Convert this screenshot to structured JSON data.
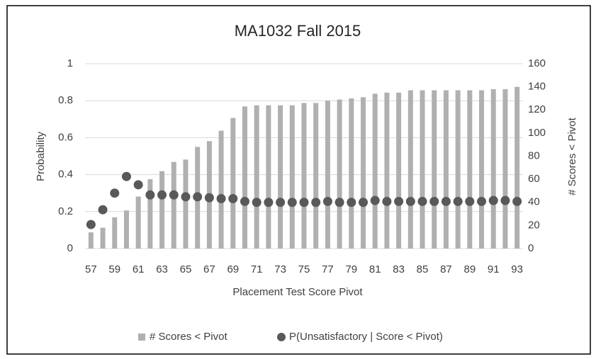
{
  "chart_data": {
    "type": "bar-scatter",
    "title": "MA1032 Fall 2015",
    "xlabel": "Placement Test Score Pivot",
    "ylabel": "Probability",
    "y2label": "# Scores < Pivot",
    "categories": [
      "57",
      null,
      "59",
      null,
      "61",
      null,
      "63",
      null,
      "65",
      null,
      "67",
      null,
      "69",
      null,
      "71",
      null,
      "73",
      null,
      "75",
      null,
      "77",
      null,
      "79",
      null,
      "81",
      null,
      "83",
      null,
      "85",
      null,
      "87",
      null,
      "89",
      null,
      "91",
      null,
      "93"
    ],
    "ylim": [
      0,
      1
    ],
    "yticks": [
      0,
      0.2,
      0.4,
      0.6,
      0.8,
      1
    ],
    "y2lim": [
      0,
      160
    ],
    "y2ticks": [
      0,
      20,
      40,
      60,
      80,
      100,
      120,
      140,
      160
    ],
    "grid": true,
    "legend": "bottom",
    "series": [
      {
        "name": "# Scores < Pivot",
        "type": "bar",
        "axis": "y2",
        "color": "#b0b0b0",
        "values": [
          14,
          18,
          27,
          33,
          45,
          60,
          67,
          75,
          77,
          88,
          93,
          102,
          113,
          123,
          124,
          124,
          124,
          124,
          126,
          126,
          128,
          129,
          130,
          131,
          134,
          135,
          135,
          137,
          137,
          137,
          137,
          137,
          137,
          137,
          138,
          138,
          140
        ]
      },
      {
        "name": "P(Unsatisfactory | Score < Pivot)",
        "type": "scatter",
        "color": "#595959",
        "values": [
          0.13,
          0.21,
          0.3,
          0.39,
          0.345,
          0.29,
          0.29,
          0.29,
          0.28,
          0.28,
          0.275,
          0.27,
          0.27,
          0.255,
          0.25,
          0.25,
          0.25,
          0.25,
          0.25,
          0.25,
          0.255,
          0.25,
          0.25,
          0.25,
          0.26,
          0.255,
          0.255,
          0.255,
          0.255,
          0.255,
          0.255,
          0.255,
          0.255,
          0.255,
          0.26,
          0.26,
          0.255
        ]
      }
    ]
  }
}
